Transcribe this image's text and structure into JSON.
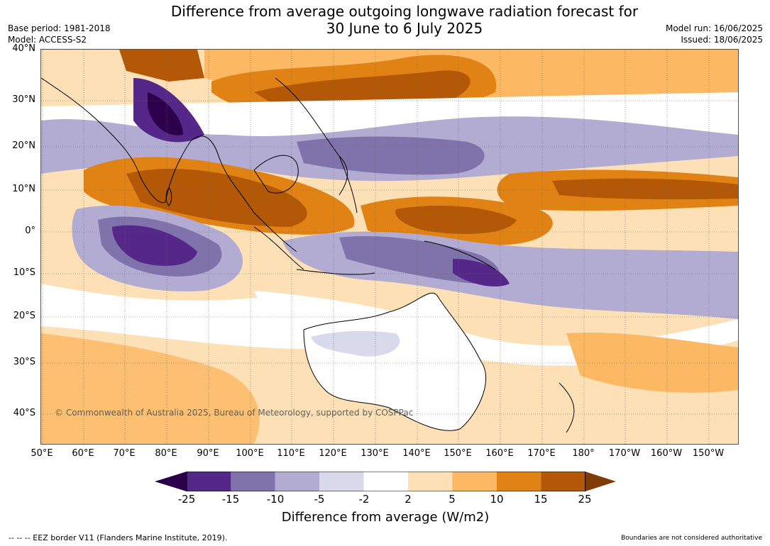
{
  "title": {
    "line1": "Difference from average outgoing longwave radiation forecast for",
    "line2": "30 June to 6 July 2025"
  },
  "meta_left": {
    "base_period": "Base period: 1981-2018",
    "model": "Model: ACCESS-S2"
  },
  "meta_right": {
    "model_run": "Model run: 16/06/2025",
    "issued": "Issued: 18/06/2025"
  },
  "map": {
    "lat_labels": [
      "40°N",
      "30°N",
      "20°N",
      "10°N",
      "0°",
      "10°S",
      "20°S",
      "30°S",
      "40°S"
    ],
    "lon_labels": [
      "50°E",
      "60°E",
      "70°E",
      "80°E",
      "90°E",
      "100°E",
      "110°E",
      "120°E",
      "130°E",
      "140°E",
      "150°E",
      "160°E",
      "170°E",
      "180°",
      "170°W",
      "160°W",
      "150°W"
    ],
    "copyright": "© Commonwealth of Australia 2025, Bureau of Meteorology, supported by COSPPac"
  },
  "colorbar": {
    "ticks": [
      "-25",
      "-15",
      "-10",
      "-5",
      "-2",
      "2",
      "5",
      "10",
      "15",
      "25"
    ],
    "colors": [
      "#2d004b",
      "#542788",
      "#8073ac",
      "#b2abd2",
      "#d8daeb",
      "#ffffff",
      "#fee0b6",
      "#fdb863",
      "#e08214",
      "#b35806",
      "#7f3b08"
    ],
    "label": "Difference from average (W/m2)"
  },
  "footer": {
    "eez_note": "--  --  -- EEZ border V11 (Flanders Marine Institute, 2019).",
    "boundaries_note": "Boundaries are not considered authoritative"
  }
}
